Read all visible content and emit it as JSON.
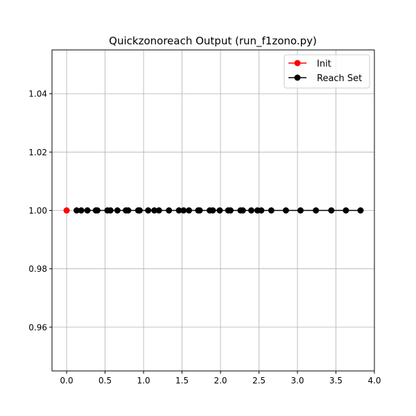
{
  "chart_data": {
    "type": "line",
    "title": "Quickzonoreach Output (run_f1zono.py)",
    "xlabel": "",
    "ylabel": "",
    "xlim": [
      -0.19,
      4.0
    ],
    "ylim": [
      0.945,
      1.055
    ],
    "x_ticks": [
      0.0,
      0.5,
      1.0,
      1.5,
      2.0,
      2.5,
      3.0,
      3.5,
      4.0
    ],
    "x_tick_labels": [
      "0.0",
      "0.5",
      "1.0",
      "1.5",
      "2.0",
      "2.5",
      "3.0",
      "3.5",
      "4.0"
    ],
    "y_ticks": [
      0.96,
      0.98,
      1.0,
      1.02,
      1.04
    ],
    "y_tick_labels": [
      "0.96",
      "0.98",
      "1.00",
      "1.02",
      "1.04"
    ],
    "grid": true,
    "legend_position": "top-right",
    "series": [
      {
        "name": "Init",
        "color": "#ff0000",
        "marker": "circle",
        "x": [
          0.0
        ],
        "y": [
          1.0
        ]
      },
      {
        "name": "Reach Set",
        "color": "#000000",
        "marker": "circle",
        "x": [
          0.13,
          0.19,
          0.27,
          0.38,
          0.4,
          0.53,
          0.57,
          0.66,
          0.77,
          0.8,
          0.93,
          0.95,
          1.06,
          1.14,
          1.2,
          1.33,
          1.46,
          1.52,
          1.59,
          1.71,
          1.73,
          1.86,
          1.9,
          1.99,
          2.1,
          2.13,
          2.26,
          2.29,
          2.4,
          2.48,
          2.53,
          2.66,
          2.85,
          3.04,
          3.24,
          3.44,
          3.63,
          3.82
        ],
        "y": [
          1.0,
          1.0,
          1.0,
          1.0,
          1.0,
          1.0,
          1.0,
          1.0,
          1.0,
          1.0,
          1.0,
          1.0,
          1.0,
          1.0,
          1.0,
          1.0,
          1.0,
          1.0,
          1.0,
          1.0,
          1.0,
          1.0,
          1.0,
          1.0,
          1.0,
          1.0,
          1.0,
          1.0,
          1.0,
          1.0,
          1.0,
          1.0,
          1.0,
          1.0,
          1.0,
          1.0,
          1.0,
          1.0
        ]
      }
    ]
  }
}
